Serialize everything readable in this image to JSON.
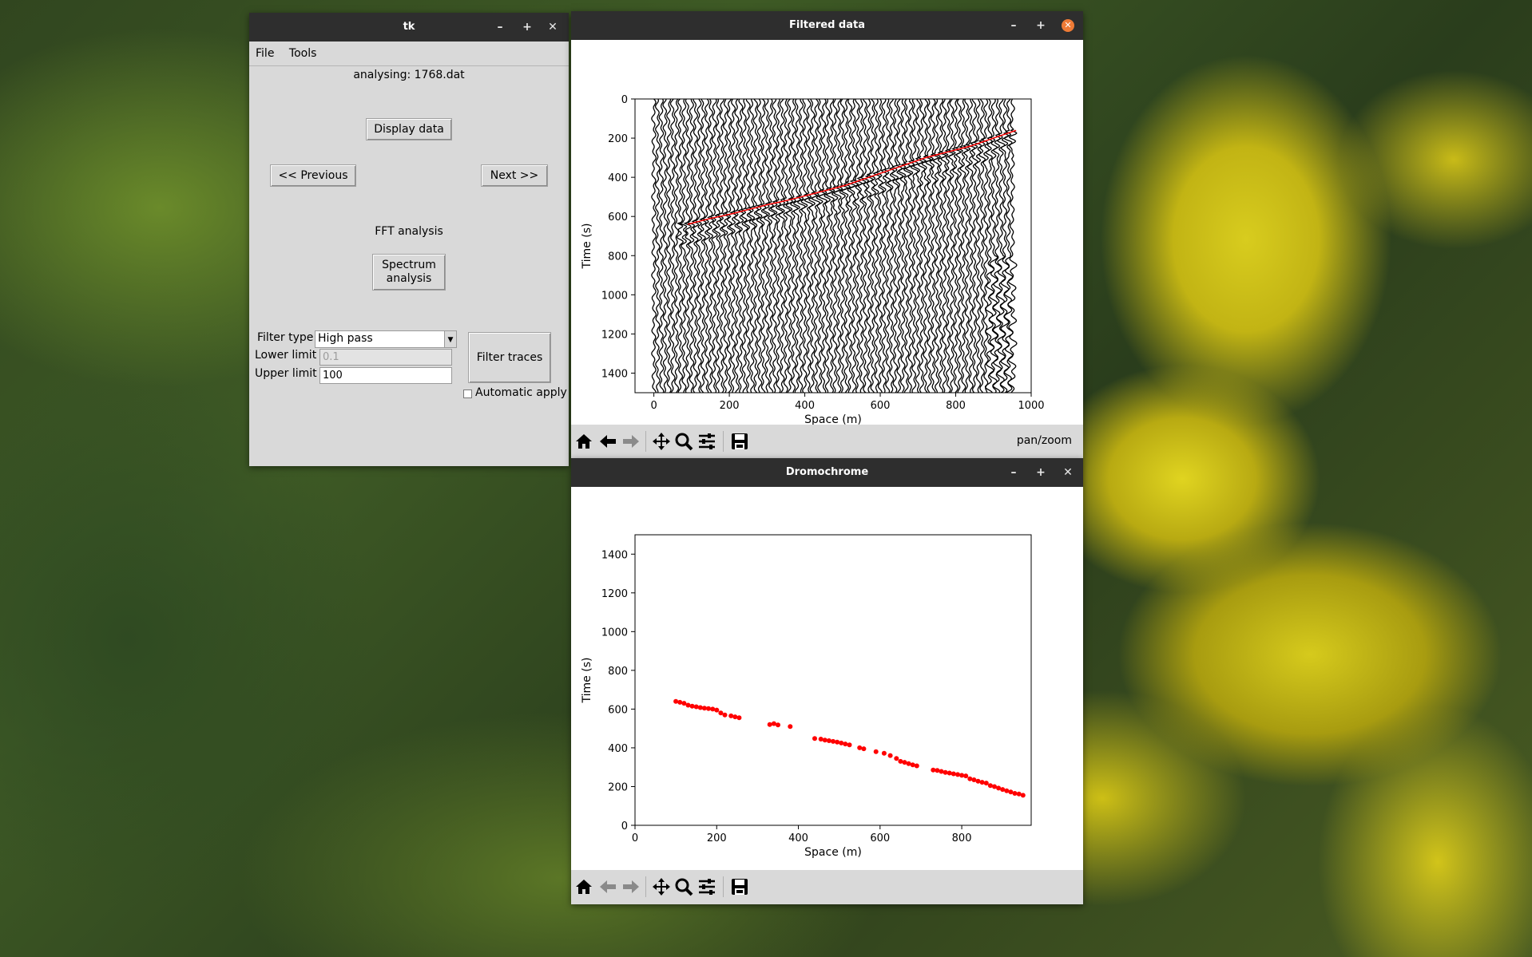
{
  "tk_window": {
    "title": "tk",
    "menu": [
      "File",
      "Tools"
    ],
    "analysing_label": "analysing: 1768.dat",
    "display_button": "Display data",
    "previous_button": "<< Previous",
    "next_button": "Next >>",
    "fft_label": "FFT analysis",
    "spectrum_button_line1": "Spectrum",
    "spectrum_button_line2": "analysis",
    "filter_type_label": "Filter type",
    "filter_type_value": "High pass",
    "lower_limit_label": "Lower limit",
    "lower_limit_value": "0.1",
    "upper_limit_label": "Upper limit",
    "upper_limit_value": "100",
    "filter_button": "Filter traces",
    "auto_apply_label": "Automatic apply",
    "auto_apply_checked": false
  },
  "filtered_window": {
    "title": "Filtered data",
    "toolbar_message": "pan/zoom",
    "tools": [
      "home-icon",
      "back-icon",
      "forward-icon",
      "move-icon",
      "zoom-icon",
      "configure-icon",
      "save-icon"
    ]
  },
  "dromo_window": {
    "title": "Dromochrome",
    "tools": [
      "home-icon",
      "back-icon",
      "forward-icon",
      "move-icon",
      "zoom-icon",
      "configure-icon",
      "save-icon"
    ]
  },
  "chart_data": [
    {
      "type": "line",
      "name": "seismic-traces",
      "xlabel": "Space (m)",
      "ylabel": "Time (s)",
      "xlim": [
        -50,
        1000
      ],
      "ylim": [
        1500,
        0
      ],
      "y_inverted": true,
      "x_ticks": [
        0,
        200,
        400,
        600,
        800,
        1000
      ],
      "y_ticks": [
        0,
        200,
        400,
        600,
        800,
        1000,
        1200,
        1400
      ],
      "trace_first_x": 0,
      "trace_spacing": 10,
      "trace_count": 96,
      "picks_color": "#ff0000",
      "picks": {
        "x": [
          90,
          120,
          150,
          180,
          210,
          240,
          270,
          300,
          330,
          360,
          390,
          420,
          450,
          480,
          510,
          540,
          570,
          600,
          630,
          660,
          690,
          720,
          750,
          780,
          810,
          840,
          870,
          900,
          930,
          960
        ],
        "y": [
          640,
          625,
          610,
          598,
          585,
          570,
          555,
          540,
          528,
          515,
          500,
          485,
          470,
          455,
          440,
          420,
          400,
          380,
          360,
          340,
          320,
          300,
          285,
          270,
          255,
          240,
          220,
          200,
          180,
          160
        ]
      }
    },
    {
      "type": "scatter",
      "name": "dromochrome",
      "xlabel": "Space (m)",
      "ylabel": "Time (s)",
      "xlim": [
        0,
        970
      ],
      "ylim": [
        0,
        1500
      ],
      "x_ticks": [
        0,
        200,
        400,
        600,
        800
      ],
      "y_ticks": [
        0,
        200,
        400,
        600,
        800,
        1000,
        1200,
        1400
      ],
      "color": "#ff0000",
      "points": {
        "x": [
          100,
          110,
          120,
          130,
          140,
          150,
          160,
          170,
          180,
          190,
          200,
          210,
          220,
          235,
          245,
          255,
          330,
          340,
          350,
          380,
          440,
          455,
          465,
          475,
          485,
          495,
          505,
          515,
          525,
          550,
          560,
          590,
          610,
          625,
          640,
          650,
          660,
          670,
          680,
          690,
          730,
          740,
          750,
          760,
          770,
          780,
          790,
          800,
          810,
          820,
          830,
          840,
          850,
          860,
          870,
          880,
          890,
          900,
          910,
          920,
          930,
          940,
          950
        ],
        "y": [
          640,
          635,
          630,
          620,
          615,
          612,
          608,
          605,
          603,
          600,
          595,
          580,
          570,
          565,
          560,
          555,
          520,
          525,
          518,
          510,
          448,
          445,
          440,
          437,
          433,
          430,
          425,
          420,
          415,
          400,
          395,
          380,
          372,
          360,
          345,
          330,
          325,
          318,
          312,
          307,
          285,
          283,
          278,
          273,
          270,
          266,
          262,
          258,
          255,
          240,
          235,
          228,
          222,
          218,
          205,
          200,
          192,
          185,
          178,
          172,
          165,
          162,
          155
        ]
      }
    }
  ]
}
